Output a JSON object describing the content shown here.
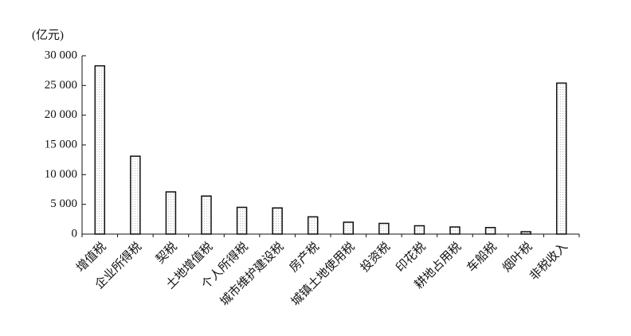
{
  "chart_data": {
    "type": "bar",
    "y_label": "(亿元)",
    "categories": [
      "增值税",
      "企业所得税",
      "契税",
      "土地增值税",
      "个人所得税",
      "城市维护建设税",
      "房产税",
      "城镇土地使用税",
      "投资税",
      "印花税",
      "耕地占用税",
      "车船税",
      "烟叶税",
      "非税收入"
    ],
    "values": [
      28300,
      13100,
      7100,
      6400,
      4500,
      4400,
      2900,
      2000,
      1800,
      1400,
      1200,
      1100,
      400,
      25400
    ],
    "color": "#c8c8c8",
    "ylim": [
      0,
      30000
    ],
    "yticks": [
      0,
      {
        "value": 5000,
        "label": "5 000"
      },
      {
        "value": 10000,
        "label": "10 000"
      },
      {
        "value": 15000,
        "label": "15 000"
      },
      {
        "value": 20000,
        "label": "20 000"
      },
      {
        "value": 25000,
        "label": "25 000"
      },
      {
        "value": 30000,
        "label": "30 000"
      }
    ],
    "grid": false
  }
}
